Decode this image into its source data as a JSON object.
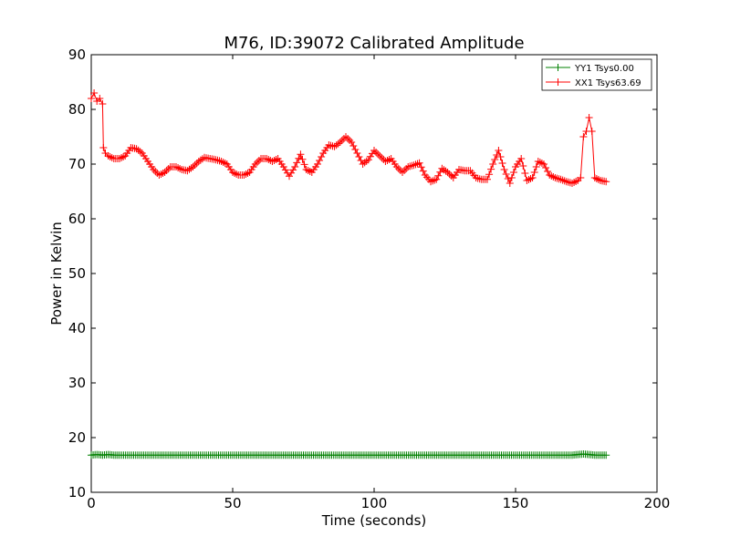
{
  "chart_data": {
    "type": "line",
    "title": "M76, ID:39072 Calibrated Amplitude",
    "xlabel": "Time (seconds)",
    "ylabel": "Power in Kelvin",
    "xlim": [
      0,
      200
    ],
    "ylim": [
      10,
      90
    ],
    "xticks": [
      "0",
      "50",
      "100",
      "150",
      "200"
    ],
    "yticks": [
      "10",
      "20",
      "30",
      "40",
      "50",
      "60",
      "70",
      "80",
      "90"
    ],
    "grid": false,
    "legend_position": "top-right",
    "marker": "+",
    "series": [
      {
        "name": "YY1 Tsys0.00",
        "color": "#008000",
        "x": [
          0,
          2,
          4,
          6,
          8,
          10,
          20,
          30,
          40,
          50,
          60,
          70,
          80,
          90,
          100,
          110,
          120,
          130,
          140,
          150,
          160,
          170,
          172,
          174,
          176,
          178,
          180,
          182
        ],
        "y": [
          16.8,
          16.9,
          16.8,
          16.9,
          16.8,
          16.8,
          16.8,
          16.8,
          16.8,
          16.8,
          16.8,
          16.8,
          16.8,
          16.8,
          16.8,
          16.8,
          16.8,
          16.8,
          16.8,
          16.8,
          16.8,
          16.8,
          16.9,
          17.0,
          16.9,
          16.8,
          16.8,
          16.8
        ]
      },
      {
        "name": "XX1 Tsys63.69",
        "color": "#ff0000",
        "x": [
          0,
          1,
          2,
          3,
          4,
          4.3,
          5,
          6,
          8,
          10,
          12,
          14,
          16,
          18,
          20,
          22,
          24,
          26,
          28,
          30,
          32,
          34,
          36,
          38,
          40,
          42,
          44,
          46,
          48,
          50,
          52,
          54,
          56,
          58,
          60,
          62,
          64,
          66,
          68,
          70,
          72,
          74,
          76,
          78,
          80,
          82,
          84,
          86,
          88,
          90,
          92,
          94,
          96,
          98,
          100,
          102,
          104,
          106,
          108,
          110,
          112,
          114,
          116,
          118,
          120,
          122,
          124,
          126,
          128,
          130,
          132,
          134,
          136,
          138,
          140,
          142,
          144,
          146,
          148,
          150,
          152,
          154,
          156,
          158,
          160,
          162,
          164,
          166,
          168,
          170,
          172,
          173,
          174,
          175,
          176,
          177,
          178,
          180,
          182
        ],
        "y": [
          82,
          83,
          81.5,
          82,
          81,
          73,
          72,
          71.5,
          71,
          71,
          71.5,
          73,
          72.8,
          72,
          70.5,
          69,
          68,
          68.5,
          69.5,
          69.5,
          69,
          68.8,
          69.5,
          70.5,
          71.2,
          71,
          70.8,
          70.5,
          70,
          68.5,
          68,
          68,
          68.5,
          70,
          71,
          71,
          70.5,
          71,
          69.5,
          67.8,
          69.5,
          71.8,
          69,
          68.5,
          70,
          72,
          73.5,
          73.2,
          74,
          75,
          74,
          72,
          70,
          70.8,
          72.5,
          71.5,
          70.5,
          71,
          69.5,
          68.5,
          69.5,
          69.8,
          70.2,
          68,
          66.8,
          67.2,
          69.2,
          68.5,
          67.5,
          69,
          68.8,
          68.8,
          67.5,
          67.2,
          67.2,
          70,
          72.5,
          69,
          66.5,
          69.5,
          71,
          67,
          67.5,
          70.5,
          70,
          68,
          67.5,
          67.2,
          66.8,
          66.5,
          67,
          67.5,
          75,
          76,
          78.5,
          76,
          67.5,
          67,
          66.8
        ]
      }
    ]
  }
}
